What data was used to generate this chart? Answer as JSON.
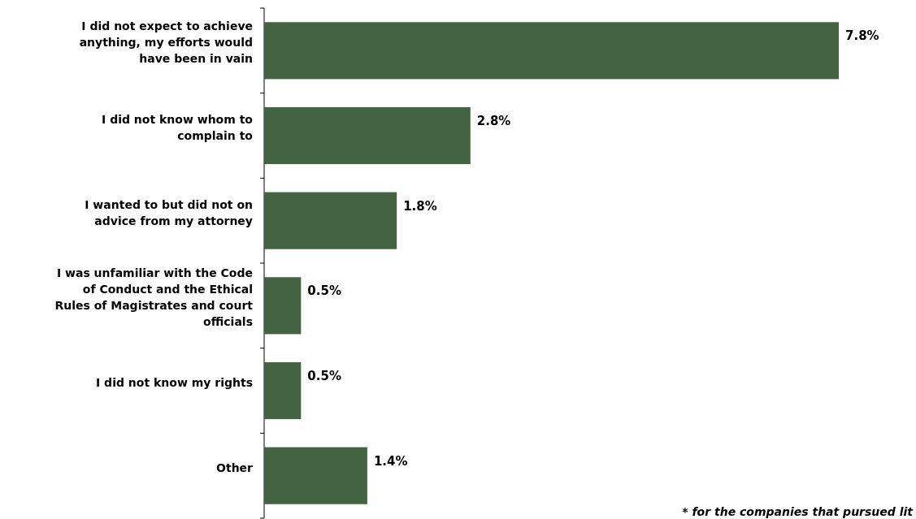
{
  "chart_data": {
    "type": "bar",
    "orientation": "horizontal",
    "categories": [
      "I did not expect to achieve anything, my efforts would have been in vain",
      "I did not know whom to complain to",
      "I wanted to but did not on advice from my attorney",
      "I was unfamiliar with the Code of Conduct and the Ethical Rules of Magistrates and court officials",
      "I did not know my rights",
      "Other"
    ],
    "values": [
      7.8,
      2.8,
      1.8,
      0.5,
      0.5,
      1.4
    ],
    "value_labels": [
      "7.8%",
      "2.8%",
      "1.8%",
      "0.5%",
      "0.5%",
      "1.4%"
    ],
    "color": "#436343",
    "annotations": [
      "* for the companies that pursued lit"
    ]
  }
}
